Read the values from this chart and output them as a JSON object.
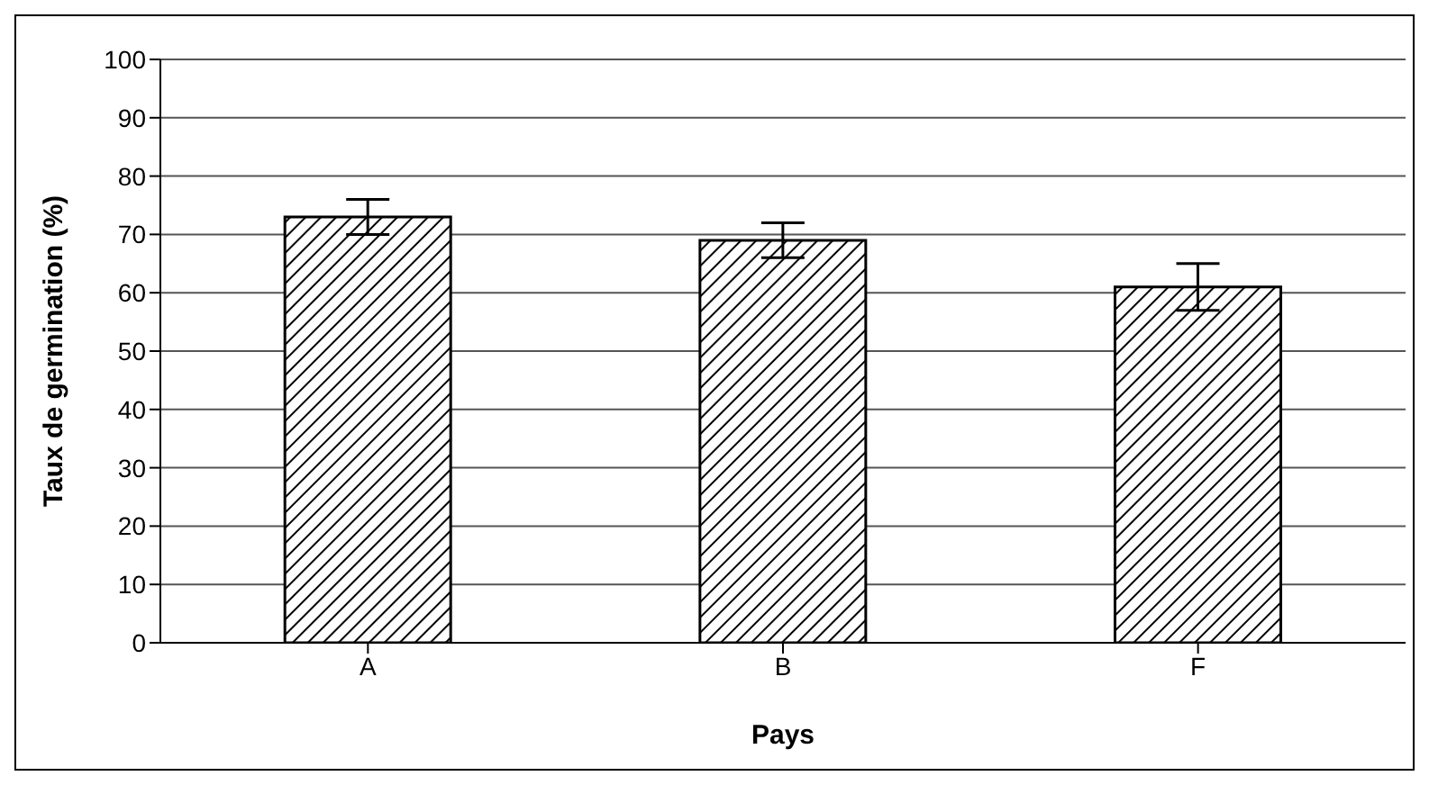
{
  "chart_data": {
    "type": "bar",
    "xlabel": "Pays",
    "ylabel": "Taux de germination (%)",
    "categories": [
      "A",
      "B",
      "F"
    ],
    "values": [
      73,
      69,
      61
    ],
    "errors": [
      3,
      3,
      4
    ],
    "color": "#000000",
    "ylim": [
      0,
      100
    ],
    "yticks": [
      0,
      10,
      20,
      30,
      40,
      50,
      60,
      70,
      80,
      90,
      100
    ],
    "grid": "y"
  }
}
